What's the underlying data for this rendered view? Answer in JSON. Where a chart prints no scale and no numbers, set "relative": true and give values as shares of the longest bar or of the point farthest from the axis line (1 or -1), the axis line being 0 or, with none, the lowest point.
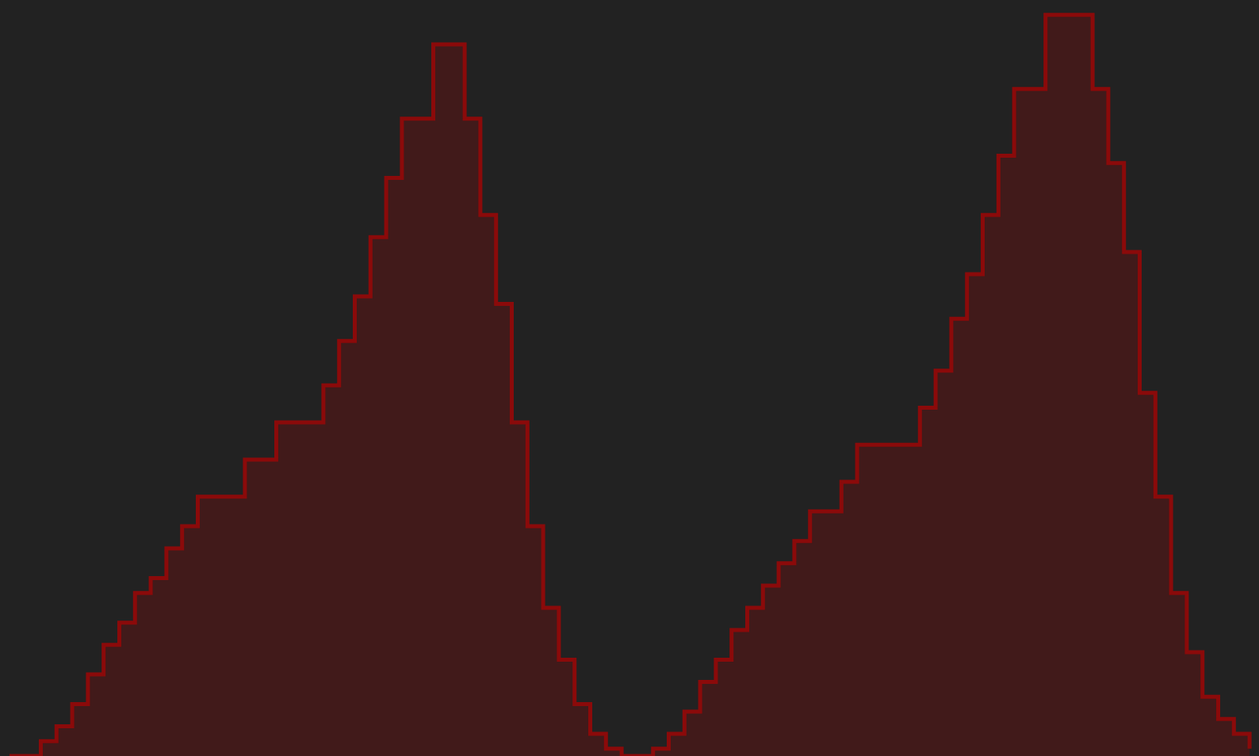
{
  "chart_data": {
    "type": "area",
    "relative": true,
    "categories": [
      null,
      null,
      null,
      null,
      null,
      null,
      null,
      null,
      null,
      null,
      null,
      null,
      null,
      null,
      null,
      null,
      null,
      null,
      null,
      null,
      null,
      null,
      null,
      null,
      null,
      null,
      null,
      null,
      null,
      null,
      null,
      null,
      null,
      null,
      null,
      null,
      null,
      null,
      null,
      null,
      null,
      null,
      null,
      null,
      null,
      null,
      null,
      null,
      null,
      null,
      null,
      null,
      null,
      null,
      null,
      null,
      null,
      null,
      null,
      null,
      null,
      null,
      null,
      null,
      null,
      null,
      null,
      null,
      null,
      null,
      null,
      null,
      null,
      null,
      null,
      null,
      null,
      null,
      null,
      null
    ],
    "series": [
      {
        "color": "#8b0a0a",
        "values": [
          0.0,
          0.0,
          0.02,
          0.04,
          0.07,
          0.11,
          0.15,
          0.18,
          0.22,
          0.24,
          0.28,
          0.31,
          0.35,
          0.35,
          0.35,
          0.4,
          0.4,
          0.45,
          0.45,
          0.45,
          0.5,
          0.56,
          0.62,
          0.7,
          0.78,
          0.86,
          0.86,
          0.96,
          0.96,
          0.86,
          0.73,
          0.61,
          0.45,
          0.31,
          0.2,
          0.13,
          0.07,
          0.03,
          0.01,
          0.0,
          0.0,
          0.01,
          0.03,
          0.06,
          0.1,
          0.13,
          0.17,
          0.2,
          0.23,
          0.26,
          0.29,
          0.33,
          0.33,
          0.37,
          0.42,
          0.42,
          0.42,
          0.42,
          0.47,
          0.52,
          0.59,
          0.65,
          0.73,
          0.81,
          0.9,
          0.9,
          1,
          1,
          1,
          0.9,
          0.8,
          0.68,
          0.49,
          0.35,
          0.22,
          0.14,
          0.08,
          0.05,
          0.03,
          0.01
        ]
      }
    ],
    "legend": false
  }
}
